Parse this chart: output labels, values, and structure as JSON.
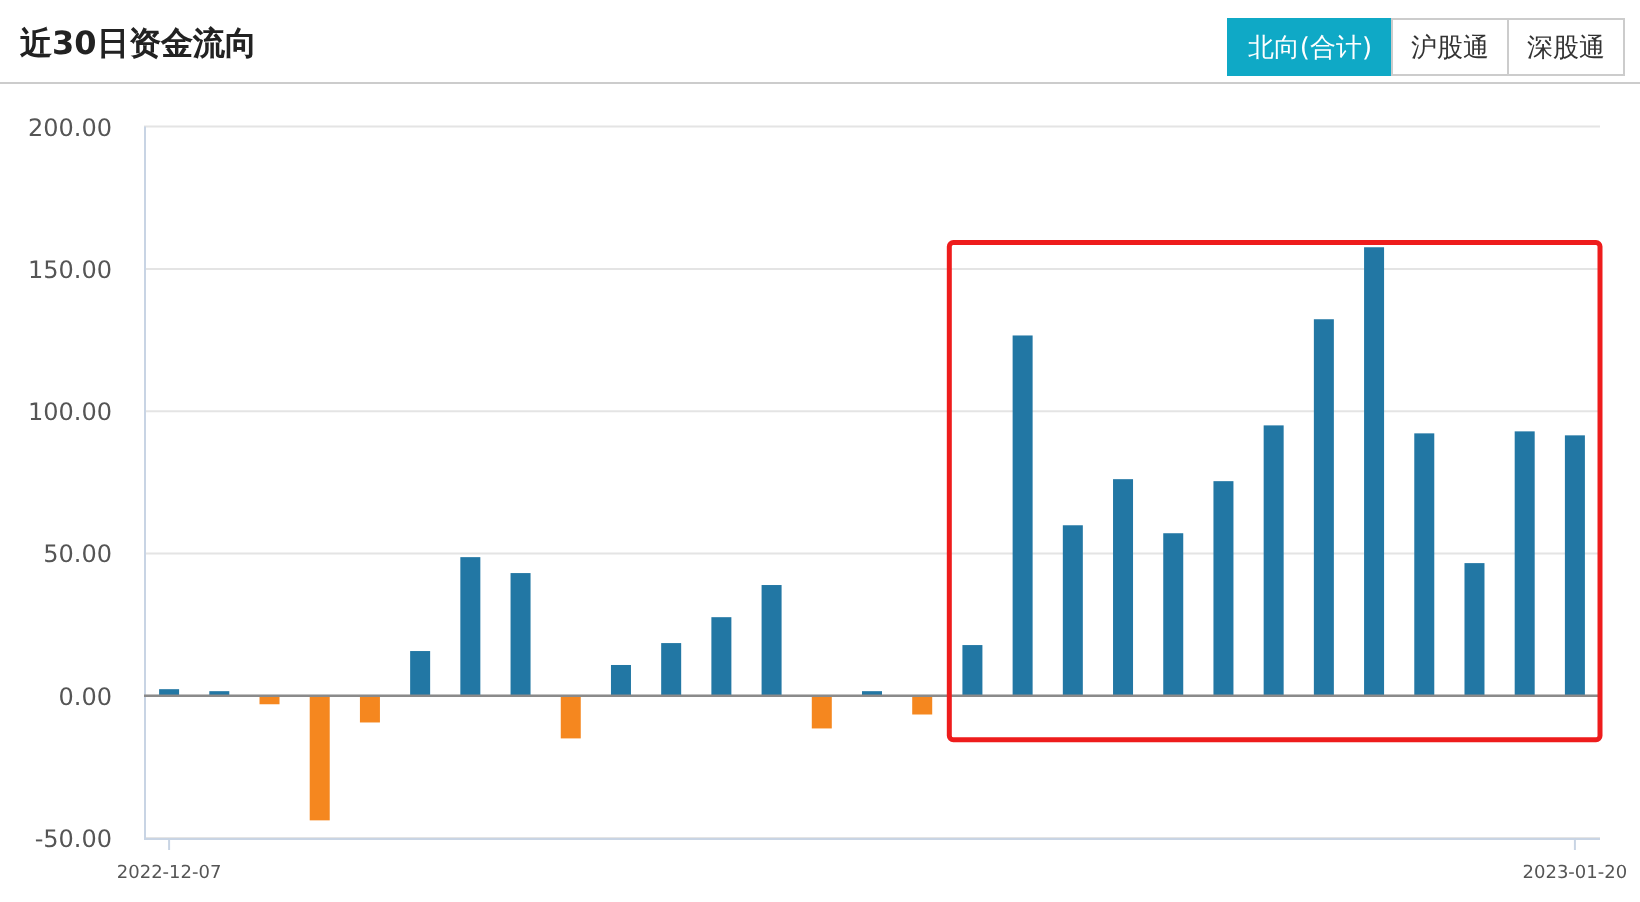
{
  "chart_data": {
    "type": "bar",
    "title": "近30日资金流向",
    "annotations": [
      "北向(合计)",
      "沪股通",
      "深股通"
    ],
    "categories": [
      "2022-12-07",
      null,
      null,
      null,
      null,
      null,
      null,
      null,
      null,
      null,
      null,
      null,
      null,
      null,
      null,
      null,
      null,
      null,
      null,
      null,
      null,
      null,
      null,
      null,
      null,
      null,
      null,
      null,
      "2023-01-20"
    ],
    "values": [
      2.3,
      1.6,
      -3.0,
      -43.8,
      -9.4,
      15.7,
      48.7,
      43.1,
      -15.0,
      10.8,
      18.5,
      27.6,
      38.9,
      -11.5,
      1.6,
      -6.6,
      17.8,
      126.6,
      59.9,
      76.1,
      57.1,
      75.4,
      95.0,
      132.3,
      157.6,
      92.2,
      46.6,
      92.9,
      91.5
    ],
    "colors": [
      "#2277a4",
      "#2277a4",
      "#f5871f",
      "#f5871f",
      "#f5871f",
      "#2277a4",
      "#2277a4",
      "#2277a4",
      "#f5871f",
      "#2277a4",
      "#2277a4",
      "#2277a4",
      "#2277a4",
      "#f5871f",
      "#2277a4",
      "#f5871f",
      "#2277a4",
      "#2277a4",
      "#2277a4",
      "#2277a4",
      "#2277a4",
      "#2277a4",
      "#2277a4",
      "#2277a4",
      "#2277a4",
      "#2277a4",
      "#2277a4",
      "#2277a4",
      "#2277a4"
    ],
    "ylim": [
      -50,
      200
    ],
    "yticks": [
      {
        "value": -50,
        "label": "-50.00"
      },
      {
        "value": 0,
        "label": "0.00"
      },
      {
        "value": 50,
        "label": "50.00"
      },
      {
        "value": 100,
        "label": "100.00"
      },
      {
        "value": 150,
        "label": "150.00"
      },
      {
        "value": 200,
        "label": "200.00"
      }
    ],
    "grid": "y"
  }
}
